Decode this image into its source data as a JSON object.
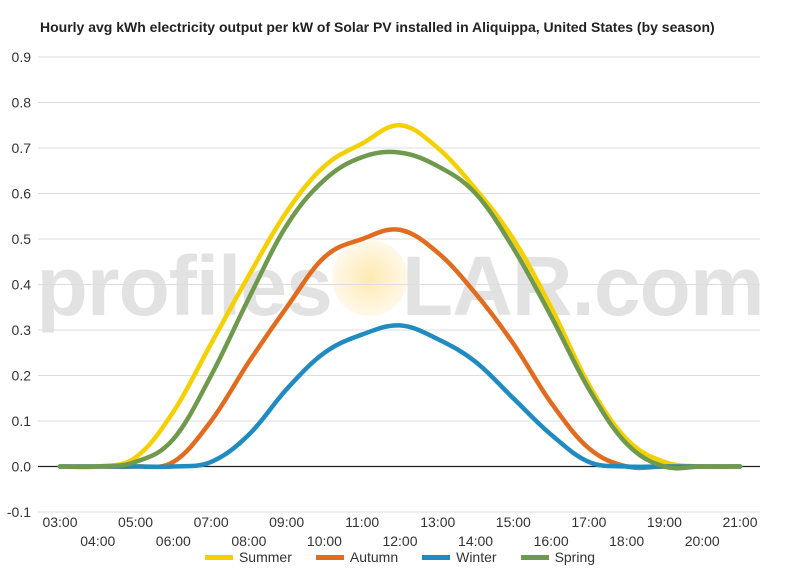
{
  "chart_data": {
    "type": "line",
    "title": "Hourly avg kWh electricity output per kW of Solar PV installed in Aliquippa, United States (by season)",
    "xlabel": "",
    "ylabel": "",
    "ylim": [
      -0.1,
      0.9
    ],
    "yticks": [
      "-0.1",
      "0.0",
      "0.1",
      "0.2",
      "0.3",
      "0.4",
      "0.5",
      "0.6",
      "0.7",
      "0.8",
      "0.9"
    ],
    "categories": [
      "03:00",
      "04:00",
      "05:00",
      "06:00",
      "07:00",
      "08:00",
      "09:00",
      "10:00",
      "11:00",
      "12:00",
      "13:00",
      "14:00",
      "15:00",
      "16:00",
      "17:00",
      "18:00",
      "19:00",
      "20:00",
      "21:00"
    ],
    "grid": true,
    "legend_position": "bottom",
    "series": [
      {
        "name": "Summer",
        "color": "#f5d000",
        "values": [
          0,
          0,
          0.02,
          0.12,
          0.27,
          0.42,
          0.56,
          0.66,
          0.71,
          0.75,
          0.7,
          0.61,
          0.5,
          0.35,
          0.18,
          0.06,
          0.01,
          0,
          0
        ]
      },
      {
        "name": "Autumn",
        "color": "#e06c1f",
        "values": [
          0,
          0,
          0,
          0.01,
          0.1,
          0.23,
          0.35,
          0.46,
          0.5,
          0.52,
          0.47,
          0.38,
          0.27,
          0.14,
          0.04,
          0,
          0,
          0,
          0
        ]
      },
      {
        "name": "Winter",
        "color": "#1f8bc0",
        "values": [
          0,
          0,
          0,
          0,
          0.01,
          0.07,
          0.17,
          0.25,
          0.29,
          0.31,
          0.28,
          0.23,
          0.15,
          0.07,
          0.01,
          0,
          0,
          0,
          0
        ]
      },
      {
        "name": "Spring",
        "color": "#6f9a4e",
        "values": [
          0,
          0,
          0.01,
          0.06,
          0.2,
          0.37,
          0.53,
          0.63,
          0.68,
          0.69,
          0.66,
          0.6,
          0.48,
          0.33,
          0.17,
          0.05,
          0,
          0,
          0
        ]
      }
    ]
  },
  "watermark": {
    "text": "profileSOLAR.com",
    "left": "profiles",
    "right": "LAR.com"
  }
}
